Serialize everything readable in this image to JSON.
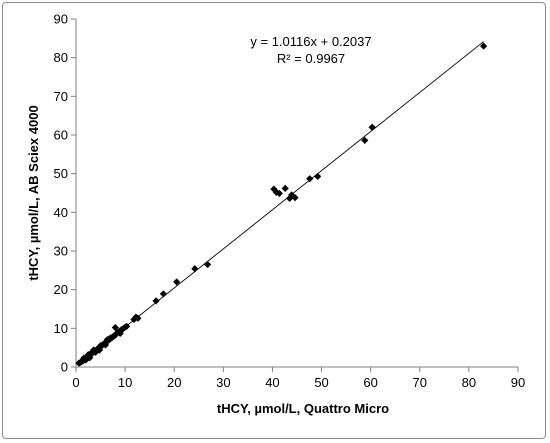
{
  "chart_data": {
    "type": "scatter",
    "xlabel": "tHCY, µmol/L, Quattro Micro",
    "ylabel": "tHCY, µmol/L, AB Sciex 4000",
    "xlim": [
      0,
      90
    ],
    "ylim": [
      0,
      90
    ],
    "xticks": [
      "0",
      "10",
      "20",
      "30",
      "40",
      "50",
      "60",
      "70",
      "80",
      "90"
    ],
    "yticks": [
      "0",
      "10",
      "20",
      "30",
      "40",
      "50",
      "60",
      "70",
      "80",
      "90"
    ],
    "grid": false,
    "marker": "diamond",
    "marker_color": "#000000",
    "trendline": {
      "type": "linear",
      "slope": 1.0116,
      "intercept": 0.2037,
      "x_range": [
        0.5,
        83
      ],
      "equation_label": "y = 1.0116x + 0.2037",
      "r2_label": "R² = 0.9967"
    },
    "series": [
      {
        "points": [
          [
            0.6,
            1.0
          ],
          [
            0.9,
            1.2
          ],
          [
            1.1,
            1.4
          ],
          [
            1.3,
            1.5
          ],
          [
            1.5,
            1.7
          ],
          [
            1.7,
            1.9
          ],
          [
            1.9,
            2.1
          ],
          [
            2.1,
            2.2
          ],
          [
            2.3,
            2.5
          ],
          [
            2.5,
            2.7
          ],
          [
            2.7,
            2.9
          ],
          [
            2.9,
            3.1
          ],
          [
            3.1,
            3.3
          ],
          [
            3.3,
            3.6
          ],
          [
            3.5,
            3.8
          ],
          [
            3.7,
            3.9
          ],
          [
            3.9,
            4.1
          ],
          [
            4.1,
            4.3
          ],
          [
            4.3,
            4.6
          ],
          [
            4.5,
            4.8
          ],
          [
            4.7,
            5.0
          ],
          [
            4.9,
            5.2
          ],
          [
            5.1,
            5.4
          ],
          [
            5.3,
            5.6
          ],
          [
            5.5,
            5.8
          ],
          [
            5.7,
            6.0
          ],
          [
            5.9,
            6.2
          ],
          [
            6.1,
            6.4
          ],
          [
            6.3,
            6.6
          ],
          [
            6.5,
            6.8
          ],
          [
            6.7,
            7.0
          ],
          [
            6.9,
            7.2
          ],
          [
            7.1,
            7.4
          ],
          [
            7.3,
            7.6
          ],
          [
            7.5,
            7.8
          ],
          [
            7.7,
            8.0
          ],
          [
            7.9,
            8.1
          ],
          [
            8.1,
            8.4
          ],
          [
            8.3,
            8.7
          ],
          [
            8.5,
            8.9
          ],
          [
            8.7,
            9.1
          ],
          [
            8.9,
            9.3
          ],
          [
            9.2,
            9.6
          ],
          [
            9.5,
            9.8
          ],
          [
            9.9,
            10.2
          ],
          [
            10.3,
            10.5
          ],
          [
            8.0,
            10.2
          ],
          [
            9.0,
            8.7
          ],
          [
            2.0,
            1.8
          ],
          [
            3.0,
            3.5
          ],
          [
            4.0,
            3.8
          ],
          [
            5.0,
            5.5
          ],
          [
            6.0,
            5.7
          ],
          [
            7.0,
            7.5
          ],
          [
            2.5,
            3.2
          ],
          [
            3.6,
            4.4
          ],
          [
            4.8,
            4.4
          ],
          [
            6.4,
            7.1
          ],
          [
            1.6,
            2.3
          ],
          [
            2.8,
            2.4
          ],
          [
            11.8,
            12.3
          ],
          [
            12.2,
            12.9
          ],
          [
            12.6,
            12.6
          ],
          [
            16.3,
            17.1
          ],
          [
            17.8,
            18.9
          ],
          [
            20.5,
            22.0
          ],
          [
            24.2,
            25.4
          ],
          [
            26.8,
            26.5
          ],
          [
            40.3,
            46.0
          ],
          [
            40.8,
            45.2
          ],
          [
            41.4,
            44.9
          ],
          [
            42.6,
            46.2
          ],
          [
            43.5,
            43.6
          ],
          [
            43.9,
            44.5
          ],
          [
            44.6,
            43.8
          ],
          [
            47.6,
            48.7
          ],
          [
            49.2,
            49.3
          ],
          [
            58.8,
            58.6
          ],
          [
            60.3,
            62.0
          ],
          [
            83.0,
            83.0
          ]
        ]
      }
    ]
  }
}
